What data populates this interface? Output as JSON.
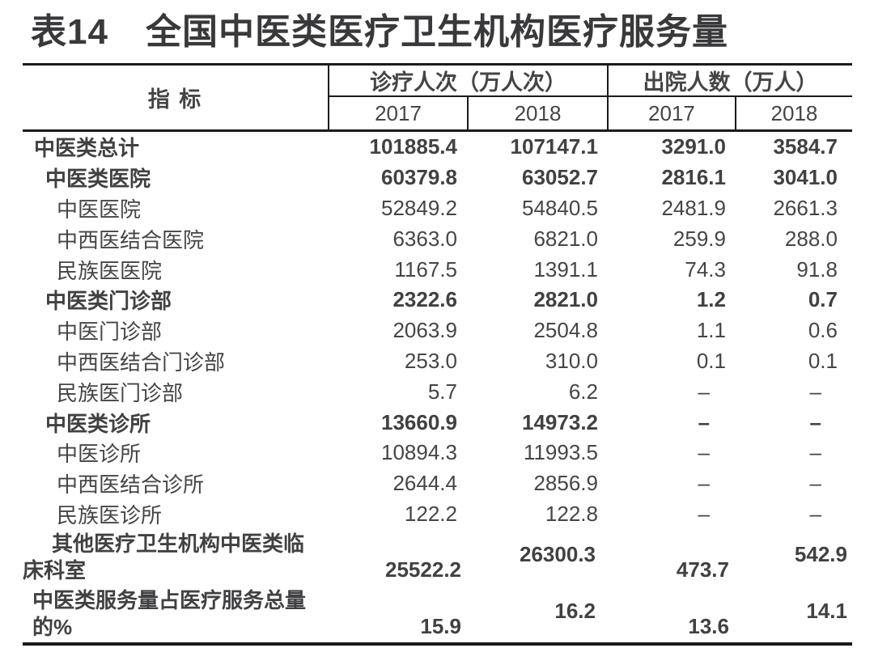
{
  "title": {
    "prefix": "表14",
    "text": "全国中医类医疗卫生机构医疗服务量"
  },
  "table": {
    "indicator_header": "指 标",
    "col_groups": [
      {
        "label": "诊疗人次（万人次）",
        "years": [
          "2017",
          "2018"
        ]
      },
      {
        "label": "出院人数（万人）",
        "years": [
          "2017",
          "2018"
        ]
      }
    ],
    "rows": [
      {
        "label": "中医类总计",
        "level": 0,
        "bold": true,
        "values": [
          "101885.4",
          "107147.1",
          "3291.0",
          "3584.7"
        ]
      },
      {
        "label": "中医类医院",
        "level": 1,
        "bold": true,
        "values": [
          "60379.8",
          "63052.7",
          "2816.1",
          "3041.0"
        ]
      },
      {
        "label": "中医医院",
        "level": 2,
        "bold": false,
        "values": [
          "52849.2",
          "54840.5",
          "2481.9",
          "2661.3"
        ]
      },
      {
        "label": "中西医结合医院",
        "level": 2,
        "bold": false,
        "values": [
          "6363.0",
          "6821.0",
          "259.9",
          "288.0"
        ]
      },
      {
        "label": "民族医医院",
        "level": 2,
        "bold": false,
        "values": [
          "1167.5",
          "1391.1",
          "74.3",
          "91.8"
        ]
      },
      {
        "label": "中医类门诊部",
        "level": 1,
        "bold": true,
        "values": [
          "2322.6",
          "2821.0",
          "1.2",
          "0.7"
        ]
      },
      {
        "label": "中医门诊部",
        "level": 2,
        "bold": false,
        "values": [
          "2063.9",
          "2504.8",
          "1.1",
          "0.6"
        ]
      },
      {
        "label": "中西医结合门诊部",
        "level": 2,
        "bold": false,
        "values": [
          "253.0",
          "310.0",
          "0.1",
          "0.1"
        ]
      },
      {
        "label": "民族医门诊部",
        "level": 2,
        "bold": false,
        "values": [
          "5.7",
          "6.2",
          "–",
          "–"
        ]
      },
      {
        "label": "中医类诊所",
        "level": 1,
        "bold": true,
        "values": [
          "13660.9",
          "14973.2",
          "–",
          "–"
        ]
      },
      {
        "label": "中医诊所",
        "level": 2,
        "bold": false,
        "values": [
          "10894.3",
          "11993.5",
          "–",
          "–"
        ]
      },
      {
        "label": "中西医结合诊所",
        "level": 2,
        "bold": false,
        "values": [
          "2644.4",
          "2856.9",
          "–",
          "–"
        ]
      },
      {
        "label": "民族医诊所",
        "level": 2,
        "bold": false,
        "values": [
          "122.2",
          "122.8",
          "–",
          "–"
        ]
      }
    ],
    "multiline_rows": [
      {
        "line1": "其他医疗卫生机构中医类临",
        "line2": "床科室",
        "full_label": "其他医疗卫生机构中医类临床科室",
        "bold": true,
        "values": [
          "25522.2",
          "26300.3",
          "473.7",
          "542.9"
        ]
      },
      {
        "line1": "中医类服务量占医疗服务总量",
        "line2": "的%",
        "full_label": "中医类服务量占医疗服务总量的%",
        "bold": true,
        "values": [
          "15.9",
          "16.2",
          "13.6",
          "14.1"
        ]
      }
    ]
  },
  "colors": {
    "page_bg": "#ffffff",
    "text": "#454547",
    "title_text": "#39393b",
    "rule_line": "#1b1b1b"
  }
}
